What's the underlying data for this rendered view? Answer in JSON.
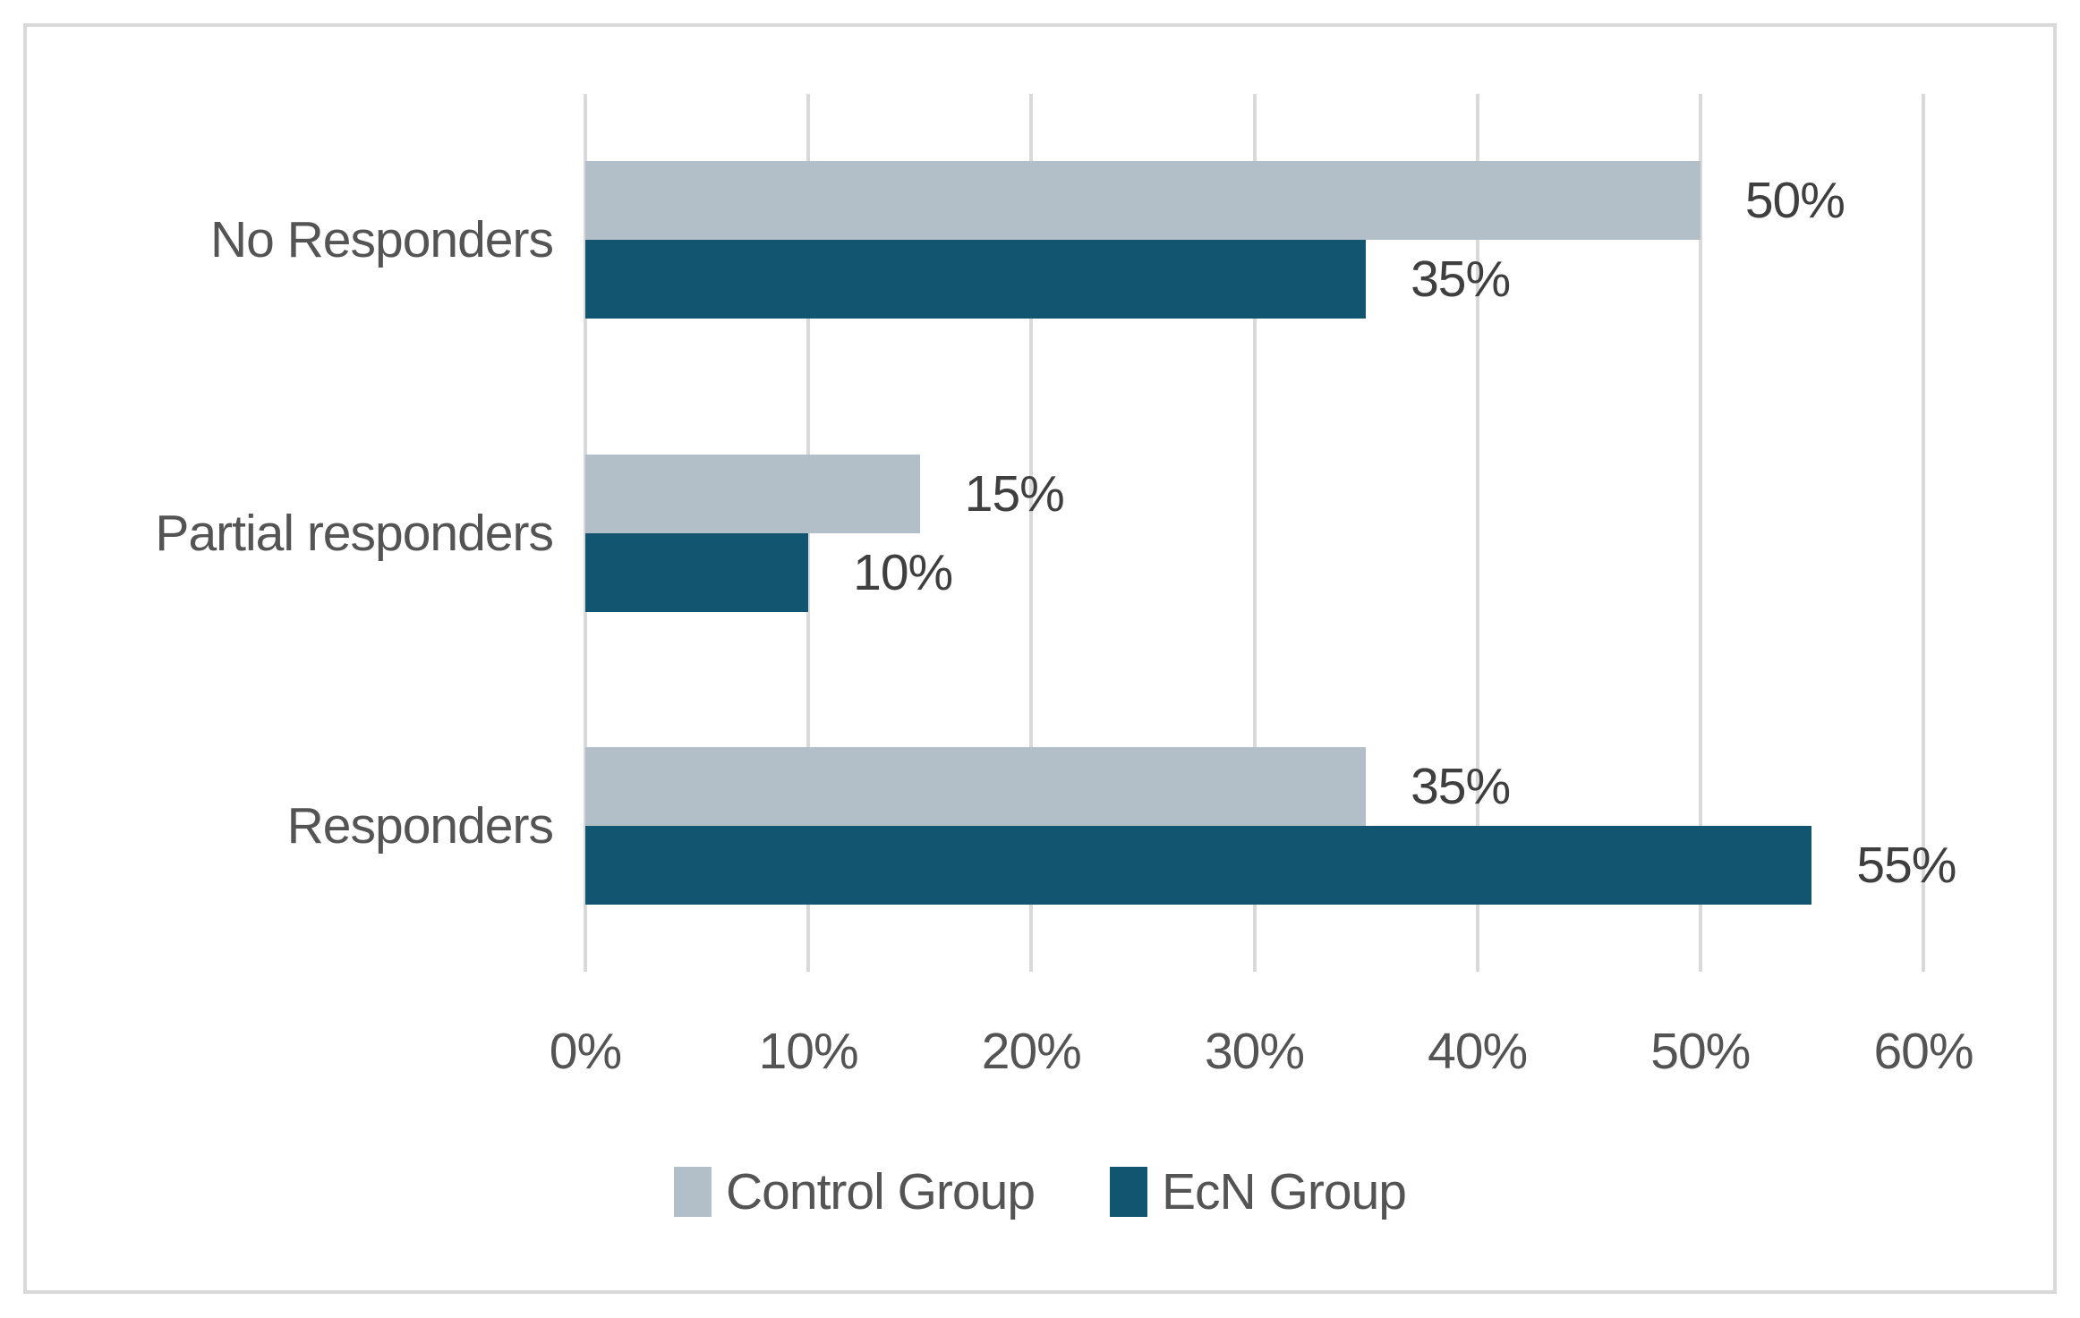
{
  "colors": {
    "background": "#FFFFFF",
    "frame_border": "#D9D9D9",
    "gridline": "#D9D9D9",
    "axis_text": "#545454",
    "value_label_text": "#3F3F3F",
    "control_group_fill": "#B2BEC8",
    "ecn_group_fill": "#115570"
  },
  "chart_data": {
    "type": "bar",
    "orientation": "horizontal",
    "title": "",
    "xlabel": "",
    "ylabel": "",
    "xlim": [
      0,
      60
    ],
    "grid": true,
    "legend_position": "bottom",
    "categories": [
      "No Responders",
      "Partial responders",
      "Responders"
    ],
    "series": [
      {
        "name": "Control Group",
        "color": "#B2BEC8",
        "values": [
          50,
          15,
          35
        ],
        "value_labels": [
          "50%",
          "15%",
          "35%"
        ]
      },
      {
        "name": "EcN Group",
        "color": "#115570",
        "values": [
          35,
          10,
          55
        ],
        "value_labels": [
          "35%",
          "10%",
          "55%"
        ]
      }
    ],
    "x_ticks": [
      {
        "value": 0,
        "label": "0%"
      },
      {
        "value": 10,
        "label": "10%"
      },
      {
        "value": 20,
        "label": "20%"
      },
      {
        "value": 30,
        "label": "30%"
      },
      {
        "value": 40,
        "label": "40%"
      },
      {
        "value": 50,
        "label": "50%"
      },
      {
        "value": 60,
        "label": "60%"
      }
    ]
  }
}
